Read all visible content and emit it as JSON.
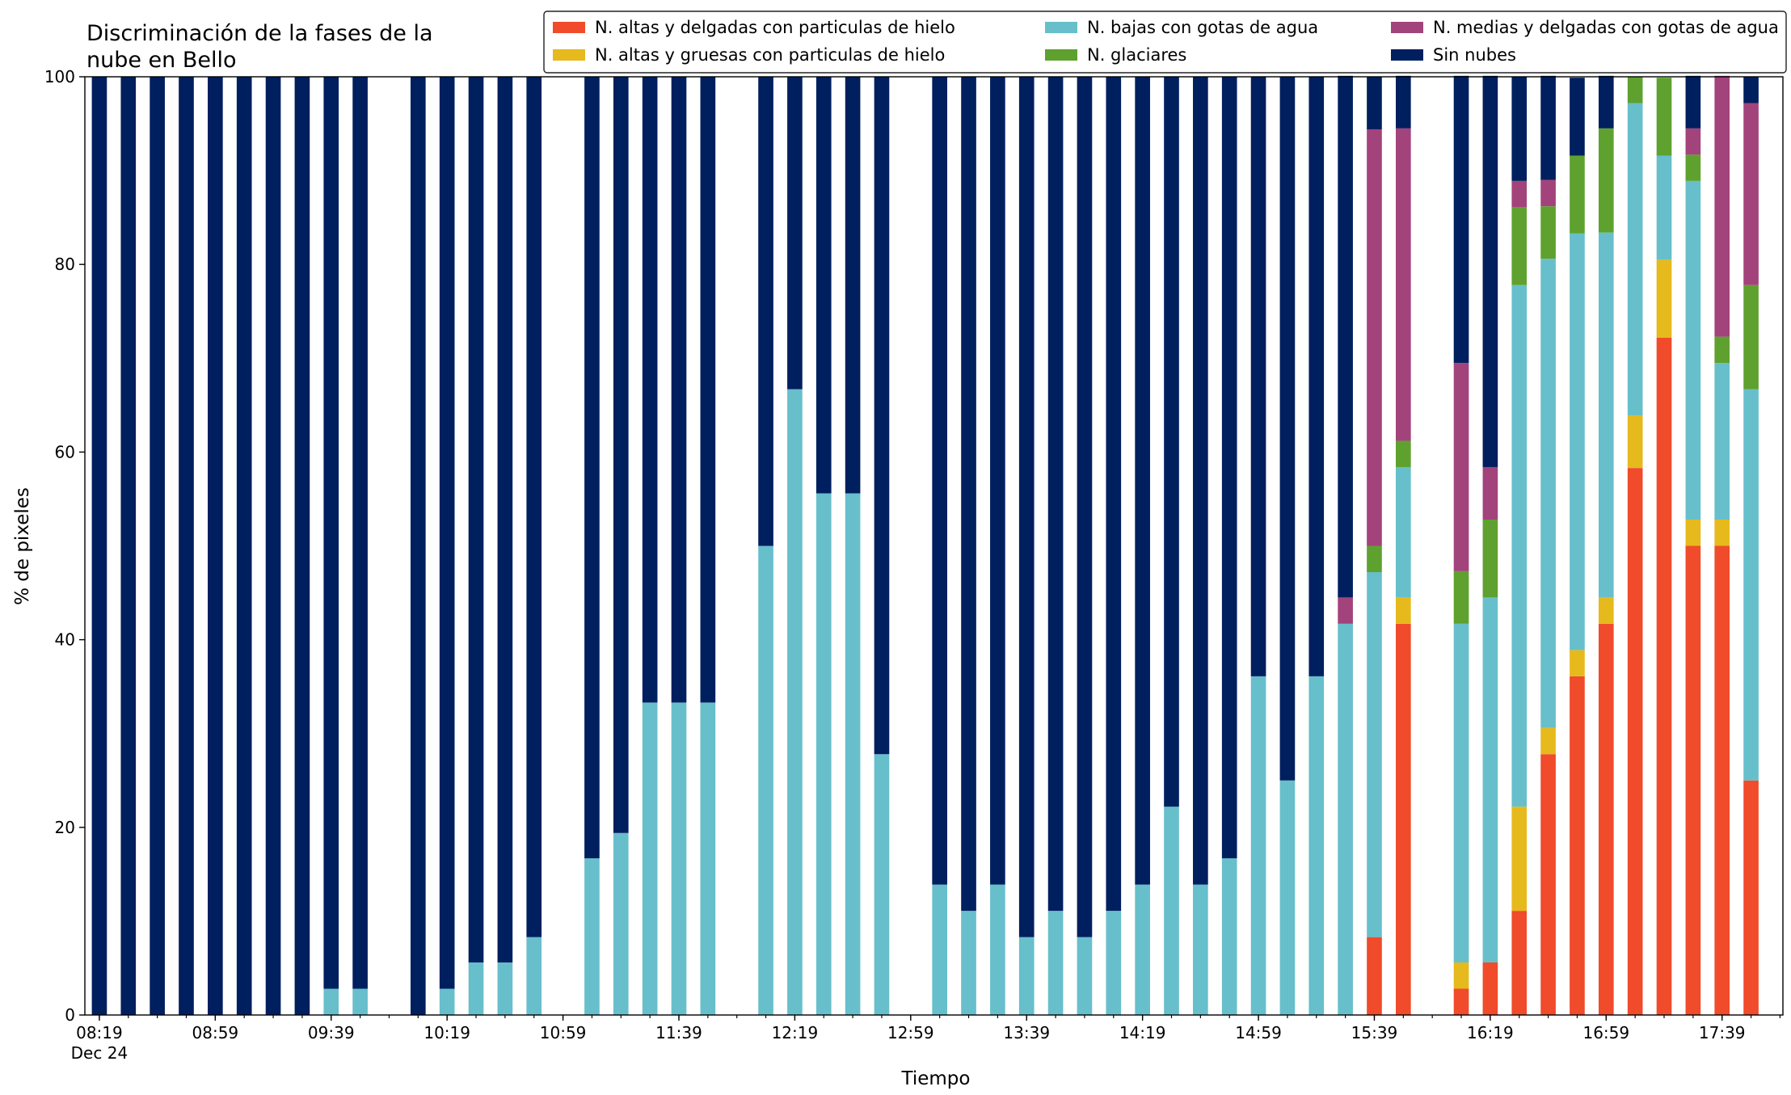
{
  "chart_data": {
    "type": "stacked_bar",
    "title": [
      "Discriminación de la fases de la",
      "nube en Bello"
    ],
    "xlabel": "Tiempo",
    "ylabel": "% de pixeles",
    "x": [
      "08:19",
      "08:29",
      "08:39",
      "08:49",
      "08:59",
      "09:09",
      "09:19",
      "09:29",
      "09:39",
      "09:49",
      "10:09",
      "10:19",
      "10:29",
      "10:39",
      "10:49",
      "11:09",
      "11:19",
      "11:29",
      "11:39",
      "11:49",
      "12:09",
      "12:19",
      "12:29",
      "12:39",
      "12:49",
      "13:09",
      "13:19",
      "13:29",
      "13:39",
      "13:49",
      "13:59",
      "14:09",
      "14:19",
      "14:29",
      "14:39",
      "14:49",
      "14:59",
      "15:09",
      "15:19",
      "15:29",
      "15:39",
      "15:49",
      "16:09",
      "16:19",
      "16:29",
      "16:39",
      "16:49",
      "16:59",
      "17:09",
      "17:19",
      "17:29",
      "17:39",
      "17:49"
    ],
    "xlim": [
      "08:14",
      "18:00"
    ],
    "xticks": [
      "08:19",
      "08:59",
      "09:39",
      "10:19",
      "10:59",
      "11:39",
      "12:19",
      "12:59",
      "13:39",
      "14:19",
      "14:59",
      "15:39",
      "16:19",
      "16:59",
      "17:39"
    ],
    "xtick_sublabel": "Dec 24",
    "xminor_step": 10,
    "ylim": [
      0,
      100
    ],
    "yticks": [
      0,
      20,
      40,
      60,
      80,
      100
    ],
    "legend": "upper right",
    "legend_columns": 3,
    "series": [
      {
        "name": "N. altas y delgadas con particulas de hielo",
        "color": "#f04b2b",
        "values": [
          0,
          0,
          0,
          0,
          0,
          0,
          0,
          0,
          0,
          0,
          0,
          0,
          0,
          0,
          0,
          0,
          0,
          0,
          0,
          0,
          0,
          0,
          0,
          0,
          0,
          0,
          0,
          0,
          0,
          0,
          0,
          0,
          0,
          0,
          0,
          0,
          0,
          0,
          0,
          0,
          8.3,
          41.7,
          2.8,
          5.6,
          11.1,
          27.8,
          36.1,
          41.7,
          58.3,
          72.2,
          50,
          50,
          25
        ]
      },
      {
        "name": "N. altas y gruesas con particulas de hielo",
        "color": "#e6b91c",
        "values": [
          0,
          0,
          0,
          0,
          0,
          0,
          0,
          0,
          0,
          0,
          0,
          0,
          0,
          0,
          0,
          0,
          0,
          0,
          0,
          0,
          0,
          0,
          0,
          0,
          0,
          0,
          0,
          0,
          0,
          0,
          0,
          0,
          0,
          0,
          0,
          0,
          0,
          0,
          0,
          0,
          0,
          2.8,
          2.8,
          0,
          11.1,
          2.8,
          2.8,
          2.8,
          5.6,
          8.3,
          2.8,
          2.8,
          0
        ]
      },
      {
        "name": "N. bajas con gotas de agua",
        "color": "#67bfcb",
        "values": [
          0,
          0,
          0,
          0,
          0,
          0,
          0,
          0,
          2.8,
          2.8,
          0,
          2.8,
          5.6,
          5.6,
          8.3,
          16.7,
          19.4,
          33.3,
          33.3,
          33.3,
          50,
          66.7,
          55.6,
          55.6,
          27.8,
          13.9,
          11.1,
          13.9,
          8.3,
          11.1,
          8.3,
          11.1,
          13.9,
          22.2,
          13.9,
          16.7,
          36.1,
          25,
          36.1,
          41.7,
          38.9,
          13.9,
          36.1,
          38.9,
          55.6,
          50,
          44.4,
          38.9,
          33.3,
          11.1,
          36.1,
          16.7,
          41.7
        ]
      },
      {
        "name": "N. glaciares",
        "color": "#5fa12f",
        "values": [
          0,
          0,
          0,
          0,
          0,
          0,
          0,
          0,
          0,
          0,
          0,
          0,
          0,
          0,
          0,
          0,
          0,
          0,
          0,
          0,
          0,
          0,
          0,
          0,
          0,
          0,
          0,
          0,
          0,
          0,
          0,
          0,
          0,
          0,
          0,
          0,
          0,
          0,
          0,
          0,
          2.8,
          2.8,
          5.6,
          8.3,
          8.3,
          5.6,
          8.3,
          11.1,
          2.8,
          8.3,
          2.8,
          2.8,
          11.1
        ]
      },
      {
        "name": "N. medias y delgadas con gotas de agua",
        "color": "#a3437b",
        "values": [
          0,
          0,
          0,
          0,
          0,
          0,
          0,
          0,
          0,
          0,
          0,
          0,
          0,
          0,
          0,
          0,
          0,
          0,
          0,
          0,
          0,
          0,
          0,
          0,
          0,
          0,
          0,
          0,
          0,
          0,
          0,
          0,
          0,
          0,
          0,
          0,
          0,
          0,
          0,
          2.8,
          44.4,
          33.3,
          22.2,
          5.6,
          2.8,
          2.8,
          0,
          0,
          0,
          0,
          2.8,
          27.8,
          19.4
        ]
      },
      {
        "name": "Sin nubes",
        "color": "#001f5f",
        "values": [
          100,
          100,
          100,
          100,
          100,
          100,
          100,
          100,
          97.2,
          97.2,
          100,
          97.2,
          94.4,
          94.4,
          91.7,
          83.3,
          80.6,
          66.7,
          66.7,
          66.7,
          50,
          33.3,
          44.4,
          44.4,
          72.2,
          86.1,
          88.9,
          86.1,
          91.7,
          88.9,
          91.7,
          88.9,
          86.1,
          77.8,
          86.1,
          83.3,
          63.9,
          75,
          63.9,
          55.6,
          5.6,
          5.6,
          30.6,
          41.7,
          11.1,
          11.1,
          8.3,
          5.6,
          0,
          0,
          5.6,
          0,
          2.8
        ]
      }
    ]
  }
}
